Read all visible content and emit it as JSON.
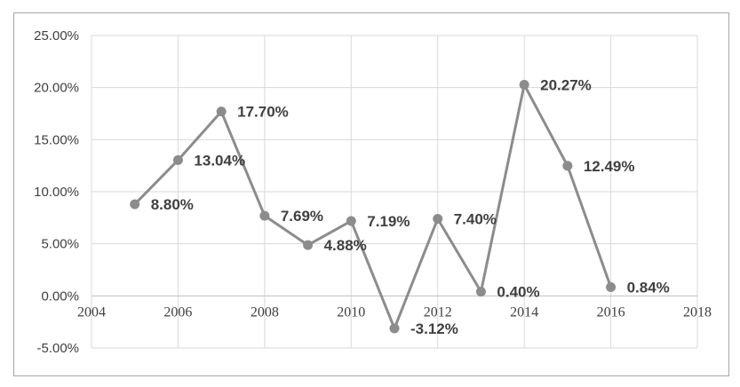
{
  "chart_data": {
    "type": "line",
    "title": "",
    "xlabel": "",
    "ylabel": "",
    "x": [
      2005,
      2006,
      2007,
      2008,
      2009,
      2010,
      2011,
      2012,
      2013,
      2014,
      2015,
      2016
    ],
    "series": [
      {
        "values": [
          8.8,
          13.04,
          17.7,
          7.69,
          4.88,
          7.19,
          -3.12,
          7.4,
          0.4,
          20.27,
          12.49,
          0.84
        ],
        "labels": [
          "8.80%",
          "13.04%",
          "17.70%",
          "7.69%",
          "4.88%",
          "7.19%",
          "-3.12%",
          "7.40%",
          "0.40%",
          "20.27%",
          "12.49%",
          "0.84%"
        ],
        "color": "#8c8c8c"
      }
    ],
    "xlim": [
      2004,
      2018
    ],
    "ylim": [
      -5,
      25
    ],
    "x_ticks": [
      "2004",
      "2006",
      "2008",
      "2010",
      "2012",
      "2014",
      "2016",
      "2018"
    ],
    "y_ticks": [
      "-5.00%",
      "0.00%",
      "5.00%",
      "10.00%",
      "15.00%",
      "20.00%",
      "25.00%"
    ],
    "grid": true,
    "legend": "none",
    "colors": {
      "line": "#8c8c8c",
      "grid": "#d9d9d9",
      "text": "#404040",
      "border": "#a6a6a6"
    }
  }
}
